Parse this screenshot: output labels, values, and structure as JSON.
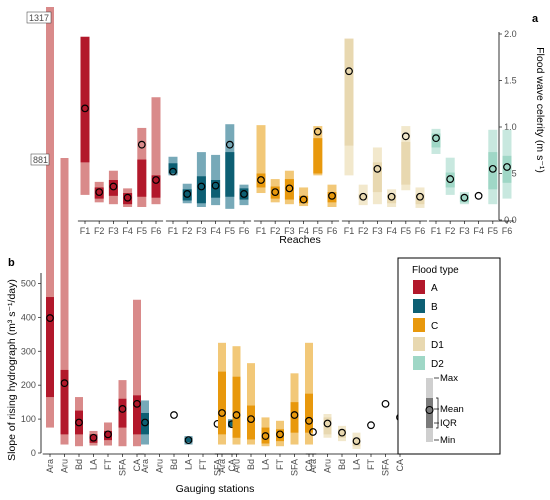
{
  "chart_data": [
    {
      "panel": "a",
      "type": "box-range",
      "ylabel": "Flood wave celerity (m s⁻¹)",
      "xlabel": "Reaches",
      "ylim": [
        0,
        2.0
      ],
      "yticks": [
        "0.0",
        "0.5",
        "1.0",
        "1.5",
        "2.0"
      ],
      "grid": false,
      "groups": [
        {
          "type": "A",
          "items": [
            {
              "x": "F1",
              "min": 0.27,
              "q1": 0.62,
              "q3": 1.97,
              "max": 1.97,
              "mean": 1.2
            },
            {
              "x": "F2",
              "min": 0.19,
              "q1": 0.23,
              "q3": 0.35,
              "max": 0.41,
              "mean": 0.3
            },
            {
              "x": "F3",
              "min": 0.17,
              "q1": 0.26,
              "q3": 0.43,
              "max": 0.53,
              "mean": 0.36
            },
            {
              "x": "F4",
              "min": 0.14,
              "q1": 0.17,
              "q3": 0.29,
              "max": 0.34,
              "mean": 0.24
            },
            {
              "x": "F5",
              "min": 0.14,
              "q1": 0.25,
              "q3": 0.65,
              "max": 0.99,
              "mean": 0.81
            },
            {
              "x": "F6",
              "min": 0.17,
              "q1": 0.24,
              "q3": 0.48,
              "max": 1.32,
              "mean": 0.43
            }
          ]
        },
        {
          "type": "B",
          "items": [
            {
              "x": "F1",
              "min": 0.48,
              "q1": 0.5,
              "q3": 0.61,
              "max": 0.68,
              "mean": 0.52
            },
            {
              "x": "F2",
              "min": 0.18,
              "q1": 0.21,
              "q3": 0.33,
              "max": 0.39,
              "mean": 0.28
            },
            {
              "x": "F3",
              "min": 0.14,
              "q1": 0.18,
              "q3": 0.47,
              "max": 0.73,
              "mean": 0.36
            },
            {
              "x": "F4",
              "min": 0.16,
              "q1": 0.24,
              "q3": 0.43,
              "max": 0.7,
              "mean": 0.37
            },
            {
              "x": "F5",
              "min": 0.12,
              "q1": 0.25,
              "q3": 0.73,
              "max": 1.03,
              "mean": 0.81
            },
            {
              "x": "F6",
              "min": 0.16,
              "q1": 0.22,
              "q3": 0.34,
              "max": 0.38,
              "mean": 0.28
            }
          ]
        },
        {
          "type": "C",
          "items": [
            {
              "x": "F1",
              "min": 0.29,
              "q1": 0.35,
              "q3": 0.5,
              "max": 1.02,
              "mean": 0.43
            },
            {
              "x": "F2",
              "min": 0.19,
              "q1": 0.23,
              "q3": 0.36,
              "max": 0.44,
              "mean": 0.3
            },
            {
              "x": "F3",
              "min": 0.17,
              "q1": 0.22,
              "q3": 0.44,
              "max": 0.53,
              "mean": 0.34
            },
            {
              "x": "F4",
              "min": 0.15,
              "q1": 0.18,
              "q3": 0.26,
              "max": 0.35,
              "mean": 0.22
            },
            {
              "x": "F5",
              "min": 0.48,
              "q1": 0.5,
              "q3": 0.88,
              "max": 1.01,
              "mean": 0.95
            },
            {
              "x": "F6",
              "min": 0.14,
              "q1": 0.19,
              "q3": 0.3,
              "max": 0.38,
              "mean": 0.26
            }
          ]
        },
        {
          "type": "D1",
          "items": [
            {
              "x": "F1",
              "min": 0.48,
              "q1": 0.8,
              "q3": 1.95,
              "max": 1.95,
              "mean": 1.6
            },
            {
              "x": "F2",
              "min": 0.16,
              "q1": 0.22,
              "q3": 0.28,
              "max": 0.38,
              "mean": 0.25
            },
            {
              "x": "F3",
              "min": 0.17,
              "q1": 0.3,
              "q3": 0.62,
              "max": 0.78,
              "mean": 0.55
            },
            {
              "x": "F4",
              "min": 0.14,
              "q1": 0.18,
              "q3": 0.27,
              "max": 0.33,
              "mean": 0.25
            },
            {
              "x": "F5",
              "min": 0.32,
              "q1": 0.38,
              "q3": 0.84,
              "max": 1.01,
              "mean": 0.9
            },
            {
              "x": "F6",
              "min": 0.13,
              "q1": 0.17,
              "q3": 0.28,
              "max": 0.35,
              "mean": 0.25
            }
          ]
        },
        {
          "type": "D2",
          "items": [
            {
              "x": "F1",
              "min": 0.71,
              "q1": 0.78,
              "q3": 0.93,
              "max": 0.98,
              "mean": 0.88
            },
            {
              "x": "F2",
              "min": 0.27,
              "q1": 0.35,
              "q3": 0.51,
              "max": 0.67,
              "mean": 0.44
            },
            {
              "x": "F3",
              "min": 0.17,
              "q1": 0.19,
              "q3": 0.27,
              "max": 0.3,
              "mean": 0.24
            },
            {
              "x": "F4",
              "min": null,
              "q1": null,
              "q3": null,
              "max": null,
              "mean": 0.26
            },
            {
              "x": "F5",
              "min": 0.17,
              "q1": 0.33,
              "q3": 0.73,
              "max": 0.97,
              "mean": 0.55
            },
            {
              "x": "F6",
              "min": 0.23,
              "q1": 0.4,
              "q3": 0.69,
              "max": 0.97,
              "mean": 0.57
            }
          ]
        }
      ]
    },
    {
      "panel": "b",
      "type": "box-range",
      "ylabel": "Slope of rising hydrograph (m³ s⁻¹/day)",
      "xlabel": "Gauging stations",
      "ylim": [
        0,
        525
      ],
      "yticks": [
        "0",
        "100",
        "200",
        "300",
        "400",
        "500"
      ],
      "grid": false,
      "outlier_labels": [
        {
          "text": "1317",
          "series": "A",
          "station": "Ara"
        },
        {
          "text": "881",
          "series": "A",
          "station": "Aru"
        }
      ],
      "groups": [
        {
          "type": "A",
          "items": [
            {
              "x": "Ara",
              "min": 75,
              "q1": 165,
              "q3": 460,
              "max": 1317,
              "mean": 398
            },
            {
              "x": "Aru",
              "min": 25,
              "q1": 55,
              "q3": 245,
              "max": 881,
              "mean": 206
            },
            {
              "x": "Bd",
              "min": 20,
              "q1": 55,
              "q3": 125,
              "max": 165,
              "mean": 90
            },
            {
              "x": "LA",
              "min": 22,
              "q1": 30,
              "q3": 55,
              "max": 65,
              "mean": 45
            },
            {
              "x": "FT",
              "min": 22,
              "q1": 38,
              "q3": 65,
              "max": 90,
              "mean": 55
            },
            {
              "x": "SFA",
              "min": 20,
              "q1": 75,
              "q3": 160,
              "max": 215,
              "mean": 130
            },
            {
              "x": "CA",
              "min": 20,
              "q1": 55,
              "q3": 170,
              "max": 452,
              "mean": 145
            }
          ]
        },
        {
          "type": "B",
          "items": [
            {
              "x": "Ara",
              "min": 25,
              "q1": 55,
              "q3": 118,
              "max": 155,
              "mean": 90
            },
            {
              "x": "Bd",
              "min": null,
              "q1": null,
              "q3": null,
              "max": null,
              "mean": 112
            },
            {
              "x": "LA",
              "min": 25,
              "q1": 32,
              "q3": 45,
              "max": 50,
              "mean": 38
            },
            {
              "x": "SFA",
              "min": null,
              "q1": null,
              "q3": null,
              "max": null,
              "mean": 86
            },
            {
              "x": "CA",
              "min": 75,
              "q1": 78,
              "q3": 95,
              "max": 100,
              "mean": 85
            }
          ]
        },
        {
          "type": "C",
          "items": [
            {
              "x": "Ara",
              "min": 25,
              "q1": 55,
              "q3": 240,
              "max": 325,
              "mean": 118
            },
            {
              "x": "Aru",
              "min": 25,
              "q1": 45,
              "q3": 225,
              "max": 315,
              "mean": 112
            },
            {
              "x": "Bd",
              "min": 25,
              "q1": 40,
              "q3": 140,
              "max": 265,
              "mean": 100
            },
            {
              "x": "LA",
              "min": 20,
              "q1": 28,
              "q3": 75,
              "max": 105,
              "mean": 50
            },
            {
              "x": "FT",
              "min": 20,
              "q1": 35,
              "q3": 70,
              "max": 95,
              "mean": 55
            },
            {
              "x": "SFA",
              "min": 25,
              "q1": 60,
              "q3": 150,
              "max": 235,
              "mean": 112
            },
            {
              "x": "CA",
              "min": 25,
              "q1": 60,
              "q3": 175,
              "max": 325,
              "mean": 95
            }
          ]
        },
        {
          "type": "D1",
          "items": [
            {
              "x": "Ara",
              "min": null,
              "q1": null,
              "q3": null,
              "max": null,
              "mean": 62
            },
            {
              "x": "Aru",
              "min": 45,
              "q1": 55,
              "q3": 105,
              "max": 115,
              "mean": 87
            },
            {
              "x": "Bd",
              "min": 35,
              "q1": 45,
              "q3": 70,
              "max": 80,
              "mean": 60
            },
            {
              "x": "LA",
              "min": 12,
              "q1": 20,
              "q3": 45,
              "max": 60,
              "mean": 35
            },
            {
              "x": "FT",
              "min": null,
              "q1": null,
              "q3": null,
              "max": null,
              "mean": 82
            },
            {
              "x": "SFA",
              "min": null,
              "q1": null,
              "q3": null,
              "max": null,
              "mean": 145
            },
            {
              "x": "CA",
              "min": null,
              "q1": null,
              "q3": null,
              "max": null,
              "mean": 105
            }
          ]
        }
      ]
    }
  ],
  "legend": {
    "title": "Flood type",
    "items": [
      {
        "label": "A",
        "color": "#b2182b"
      },
      {
        "label": "B",
        "color": "#01665e"
      },
      {
        "label": "C",
        "color": "#e69f00"
      },
      {
        "label": "D1",
        "color": "#dfc27d"
      },
      {
        "label": "D2",
        "color": "#80cdc1"
      }
    ],
    "key_labels": [
      "Max",
      "Mean",
      "IQR",
      "Min"
    ]
  },
  "colors": {
    "A": {
      "iqr": "#b2182b",
      "range": "#d98a8a"
    },
    "B": {
      "iqr": "#0d5f73",
      "range": "#77a9b8"
    },
    "C": {
      "iqr": "#e8980c",
      "range": "#f2c878"
    },
    "D1": {
      "iqr": "#e8d8b0",
      "range": "#f2e8cc"
    },
    "D2": {
      "iqr": "#9fd7c6",
      "range": "#c8e8df"
    }
  }
}
